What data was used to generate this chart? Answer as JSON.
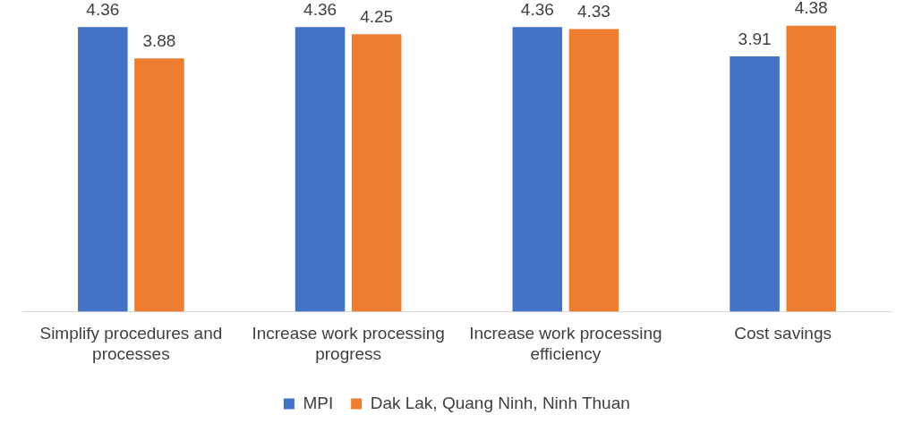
{
  "chart_data": {
    "type": "bar",
    "categories": [
      "Simplify procedures and processes",
      "Increase work processing progress",
      "Increase work processing efficiency",
      "Cost savings"
    ],
    "series": [
      {
        "name": "MPI",
        "color": "#4472c4",
        "values": [
          4.36,
          4.36,
          4.36,
          3.91
        ]
      },
      {
        "name": "Dak Lak, Quang Ninh, Ninh Thuan",
        "color": "#ed7d31",
        "values": [
          3.88,
          4.25,
          4.33,
          4.38
        ]
      }
    ],
    "data_labels": true,
    "legend": "bottom",
    "grid": false,
    "tick_labels": "x"
  }
}
